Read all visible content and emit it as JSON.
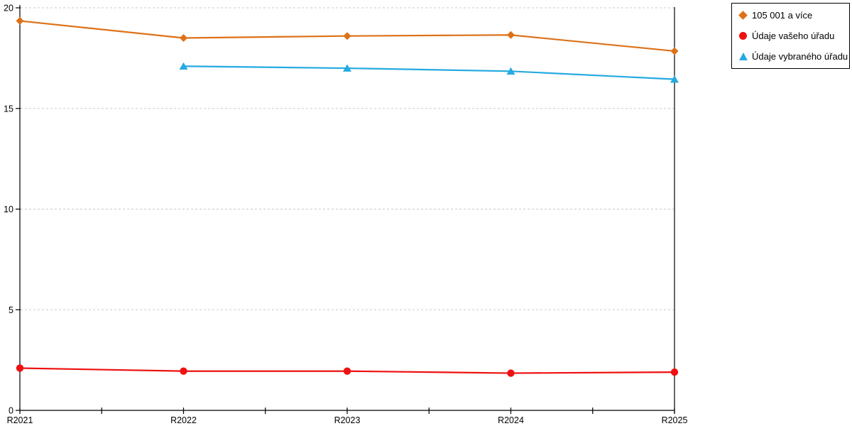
{
  "page": {
    "background": "#ffffff"
  },
  "chart_data": {
    "type": "line",
    "title": "",
    "xlabel": "",
    "ylabel": "",
    "categories": [
      "R2021",
      "R2022",
      "R2023",
      "R2024",
      "R2025"
    ],
    "series": [
      {
        "name": "105 001 a více",
        "marker": "diamond",
        "color": "#dd7118",
        "values": [
          19.35,
          18.5,
          18.6,
          18.65,
          17.85
        ]
      },
      {
        "name": "Údaje vašeho úřadu",
        "marker": "circle",
        "color": "#ee1111",
        "values": [
          2.1,
          1.95,
          1.95,
          1.85,
          1.9
        ]
      },
      {
        "name": "Údaje vybraného úřadu",
        "marker": "triangle",
        "color": "#25aae1",
        "values": [
          null,
          17.1,
          17.0,
          16.85,
          16.45
        ]
      }
    ],
    "ylim": [
      0,
      20
    ],
    "yticks": [
      0,
      5,
      10,
      15,
      20
    ],
    "grid": "horizontal-dashed",
    "grid_color": "#c9c9c9",
    "axis_color": "#000000",
    "minor_x_ticks_between_categories": true,
    "legend_position": "top-right"
  }
}
